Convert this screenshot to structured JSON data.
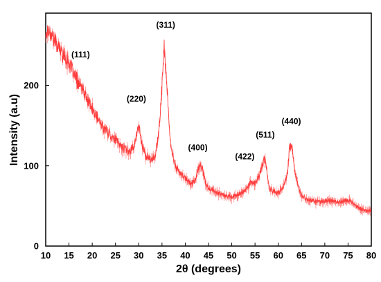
{
  "chart_data": {
    "type": "line",
    "title": "",
    "xlabel": "2θ (degrees)",
    "ylabel": "Intensity (a.u)",
    "xlim": [
      10,
      80
    ],
    "ylim": [
      0,
      290
    ],
    "xticks": [
      10,
      15,
      20,
      25,
      30,
      35,
      40,
      45,
      50,
      55,
      60,
      65,
      70,
      75,
      80
    ],
    "yticks": [
      0,
      100,
      200
    ],
    "grid": false,
    "legend": "none",
    "series": [
      {
        "name": "",
        "color": "#ff3a3a",
        "points": [
          [
            10,
            262
          ],
          [
            10.5,
            270
          ],
          [
            11,
            266
          ],
          [
            12,
            255
          ],
          [
            13,
            245
          ],
          [
            14,
            237
          ],
          [
            15,
            228
          ],
          [
            16,
            214
          ],
          [
            17,
            204
          ],
          [
            18,
            193
          ],
          [
            19,
            182
          ],
          [
            20,
            170
          ],
          [
            21,
            160
          ],
          [
            22,
            151
          ],
          [
            23,
            144
          ],
          [
            24,
            138
          ],
          [
            25,
            132
          ],
          [
            26,
            126
          ],
          [
            27,
            121
          ],
          [
            28,
            118
          ],
          [
            29,
            125
          ],
          [
            30,
            150
          ],
          [
            30.8,
            125
          ],
          [
            31.5,
            112
          ],
          [
            32.5,
            108
          ],
          [
            33.5,
            112
          ],
          [
            34.3,
            140
          ],
          [
            35,
            200
          ],
          [
            35.5,
            250
          ],
          [
            36,
            205
          ],
          [
            36.5,
            150
          ],
          [
            37,
            120
          ],
          [
            38,
            98
          ],
          [
            39,
            90
          ],
          [
            40,
            84
          ],
          [
            41,
            79
          ],
          [
            42,
            80
          ],
          [
            43,
            100
          ],
          [
            43.7,
            96
          ],
          [
            44.5,
            76
          ],
          [
            45,
            72
          ],
          [
            46,
            69
          ],
          [
            47,
            66
          ],
          [
            48,
            64
          ],
          [
            49,
            62
          ],
          [
            50,
            62
          ],
          [
            51,
            63
          ],
          [
            52,
            66
          ],
          [
            53,
            70
          ],
          [
            54,
            80
          ],
          [
            55,
            78
          ],
          [
            56,
            88
          ],
          [
            57,
            110
          ],
          [
            57.5,
            97
          ],
          [
            58,
            72
          ],
          [
            59,
            68
          ],
          [
            60,
            66
          ],
          [
            61,
            72
          ],
          [
            62,
            92
          ],
          [
            62.5,
            126
          ],
          [
            63,
            122
          ],
          [
            63.6,
            92
          ],
          [
            64.2,
            75
          ],
          [
            65,
            63
          ],
          [
            66,
            59
          ],
          [
            67,
            57
          ],
          [
            68,
            56
          ],
          [
            69,
            55
          ],
          [
            70,
            56
          ],
          [
            71,
            57
          ],
          [
            72,
            56
          ],
          [
            73,
            55
          ],
          [
            74,
            56
          ],
          [
            75,
            57
          ],
          [
            76,
            54
          ],
          [
            77,
            49
          ],
          [
            78,
            46
          ],
          [
            79,
            44
          ],
          [
            80,
            44
          ]
        ]
      }
    ],
    "annotations": [
      {
        "text": "(111)",
        "x": 17.5,
        "y": 235
      },
      {
        "text": "(220)",
        "x": 29.5,
        "y": 180
      },
      {
        "text": "(311)",
        "x": 35.8,
        "y": 272
      },
      {
        "text": "(400)",
        "x": 42.7,
        "y": 119
      },
      {
        "text": "(422)",
        "x": 52.8,
        "y": 108
      },
      {
        "text": "(511)",
        "x": 57.2,
        "y": 135
      },
      {
        "text": "(440)",
        "x": 62.8,
        "y": 152
      }
    ]
  }
}
